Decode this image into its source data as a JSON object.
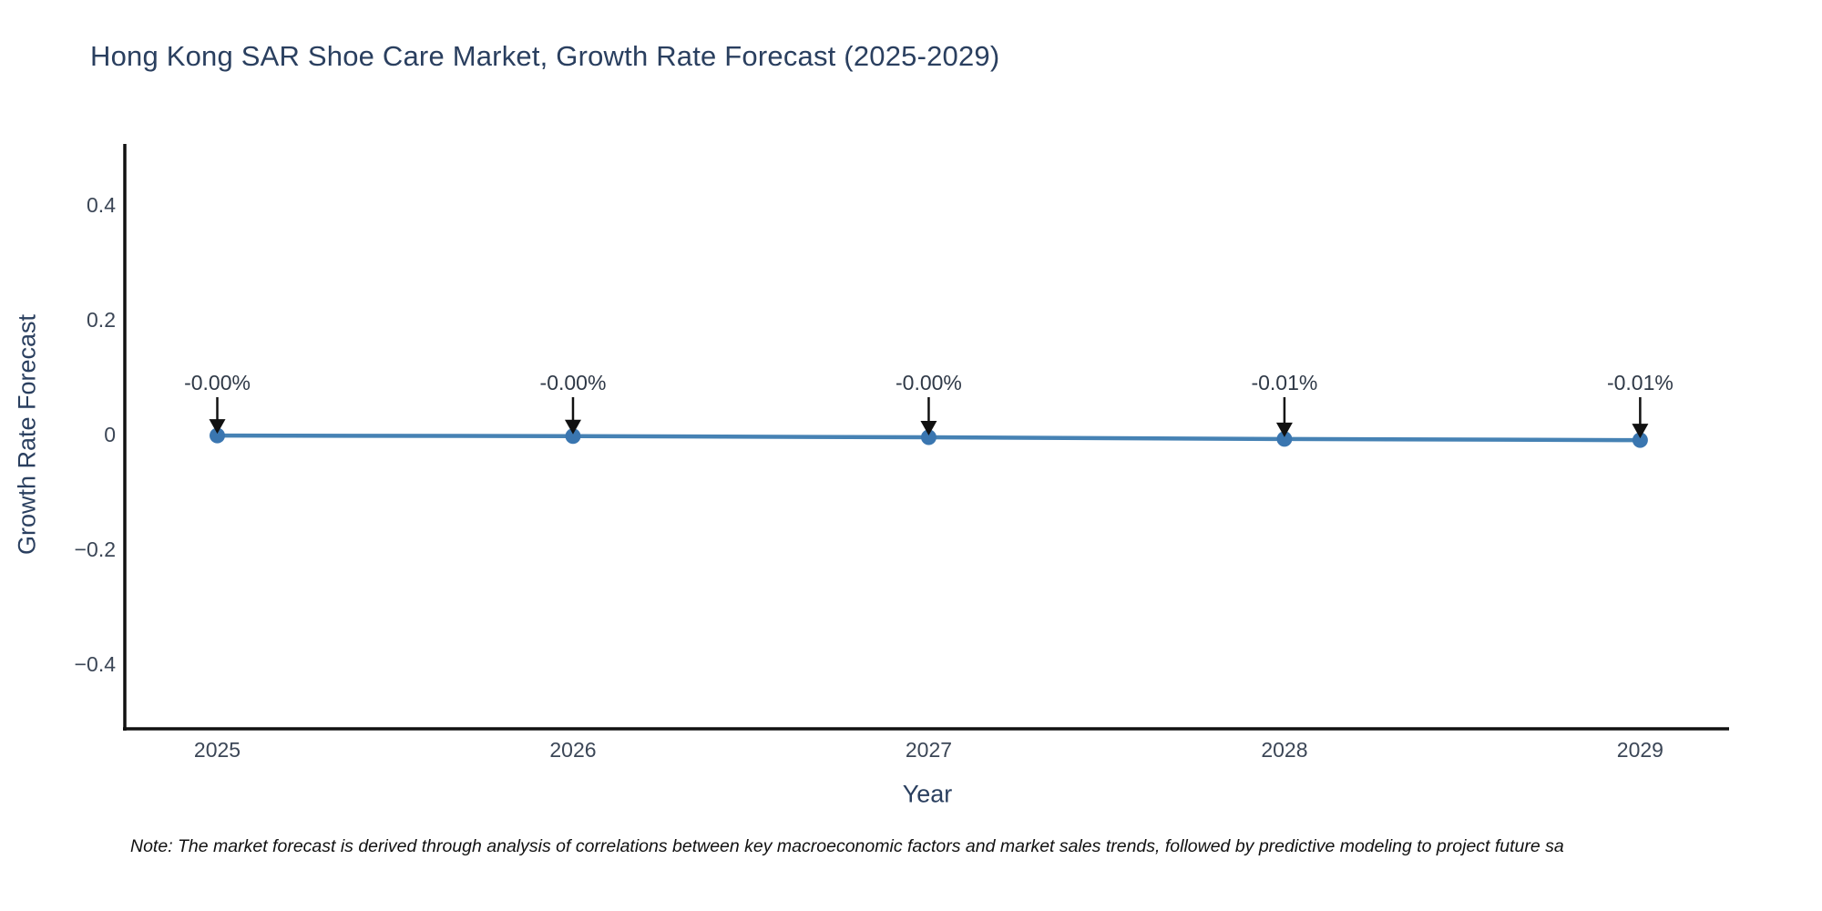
{
  "chart_data": {
    "type": "line",
    "title": "Hong Kong SAR Shoe Care Market, Growth Rate Forecast (2025-2029)",
    "xlabel": "Year",
    "ylabel": "Growth Rate Forecast",
    "x": [
      2025,
      2026,
      2027,
      2028,
      2029
    ],
    "series": [
      {
        "name": "Growth Rate Forecast",
        "labels": [
          "-0.00%",
          "-0.00%",
          "-0.00%",
          "-0.01%",
          "-0.01%"
        ],
        "values": [
          -0.002,
          -0.003,
          -0.005,
          -0.008,
          -0.01
        ]
      }
    ],
    "x_tick_labels": [
      "2025",
      "2026",
      "2027",
      "2028",
      "2029"
    ],
    "y_ticks": [
      0.4,
      0.2,
      0,
      -0.2,
      -0.4
    ],
    "y_tick_labels": [
      "0.4",
      "0.2",
      "0",
      "−0.2",
      "−0.4"
    ],
    "xlim": [
      2024.74,
      2029.25
    ],
    "ylim": [
      -0.513,
      0.503
    ],
    "grid": false,
    "legend": "none",
    "annotation_style": "arrow-down-to-point",
    "colors": {
      "line": "#4682b4",
      "marker": "#3a76b0",
      "axis": "#111111",
      "text": "#2a3f5f",
      "tick_text": "#3b4656",
      "annotation_text": "#2f3947",
      "arrow": "#111111",
      "note_text": "#111111",
      "background": "#ffffff"
    },
    "note": "Note: The market forecast is derived through analysis of correlations between key macroeconomic factors and market sales trends, followed by predictive modeling to project future sa"
  }
}
